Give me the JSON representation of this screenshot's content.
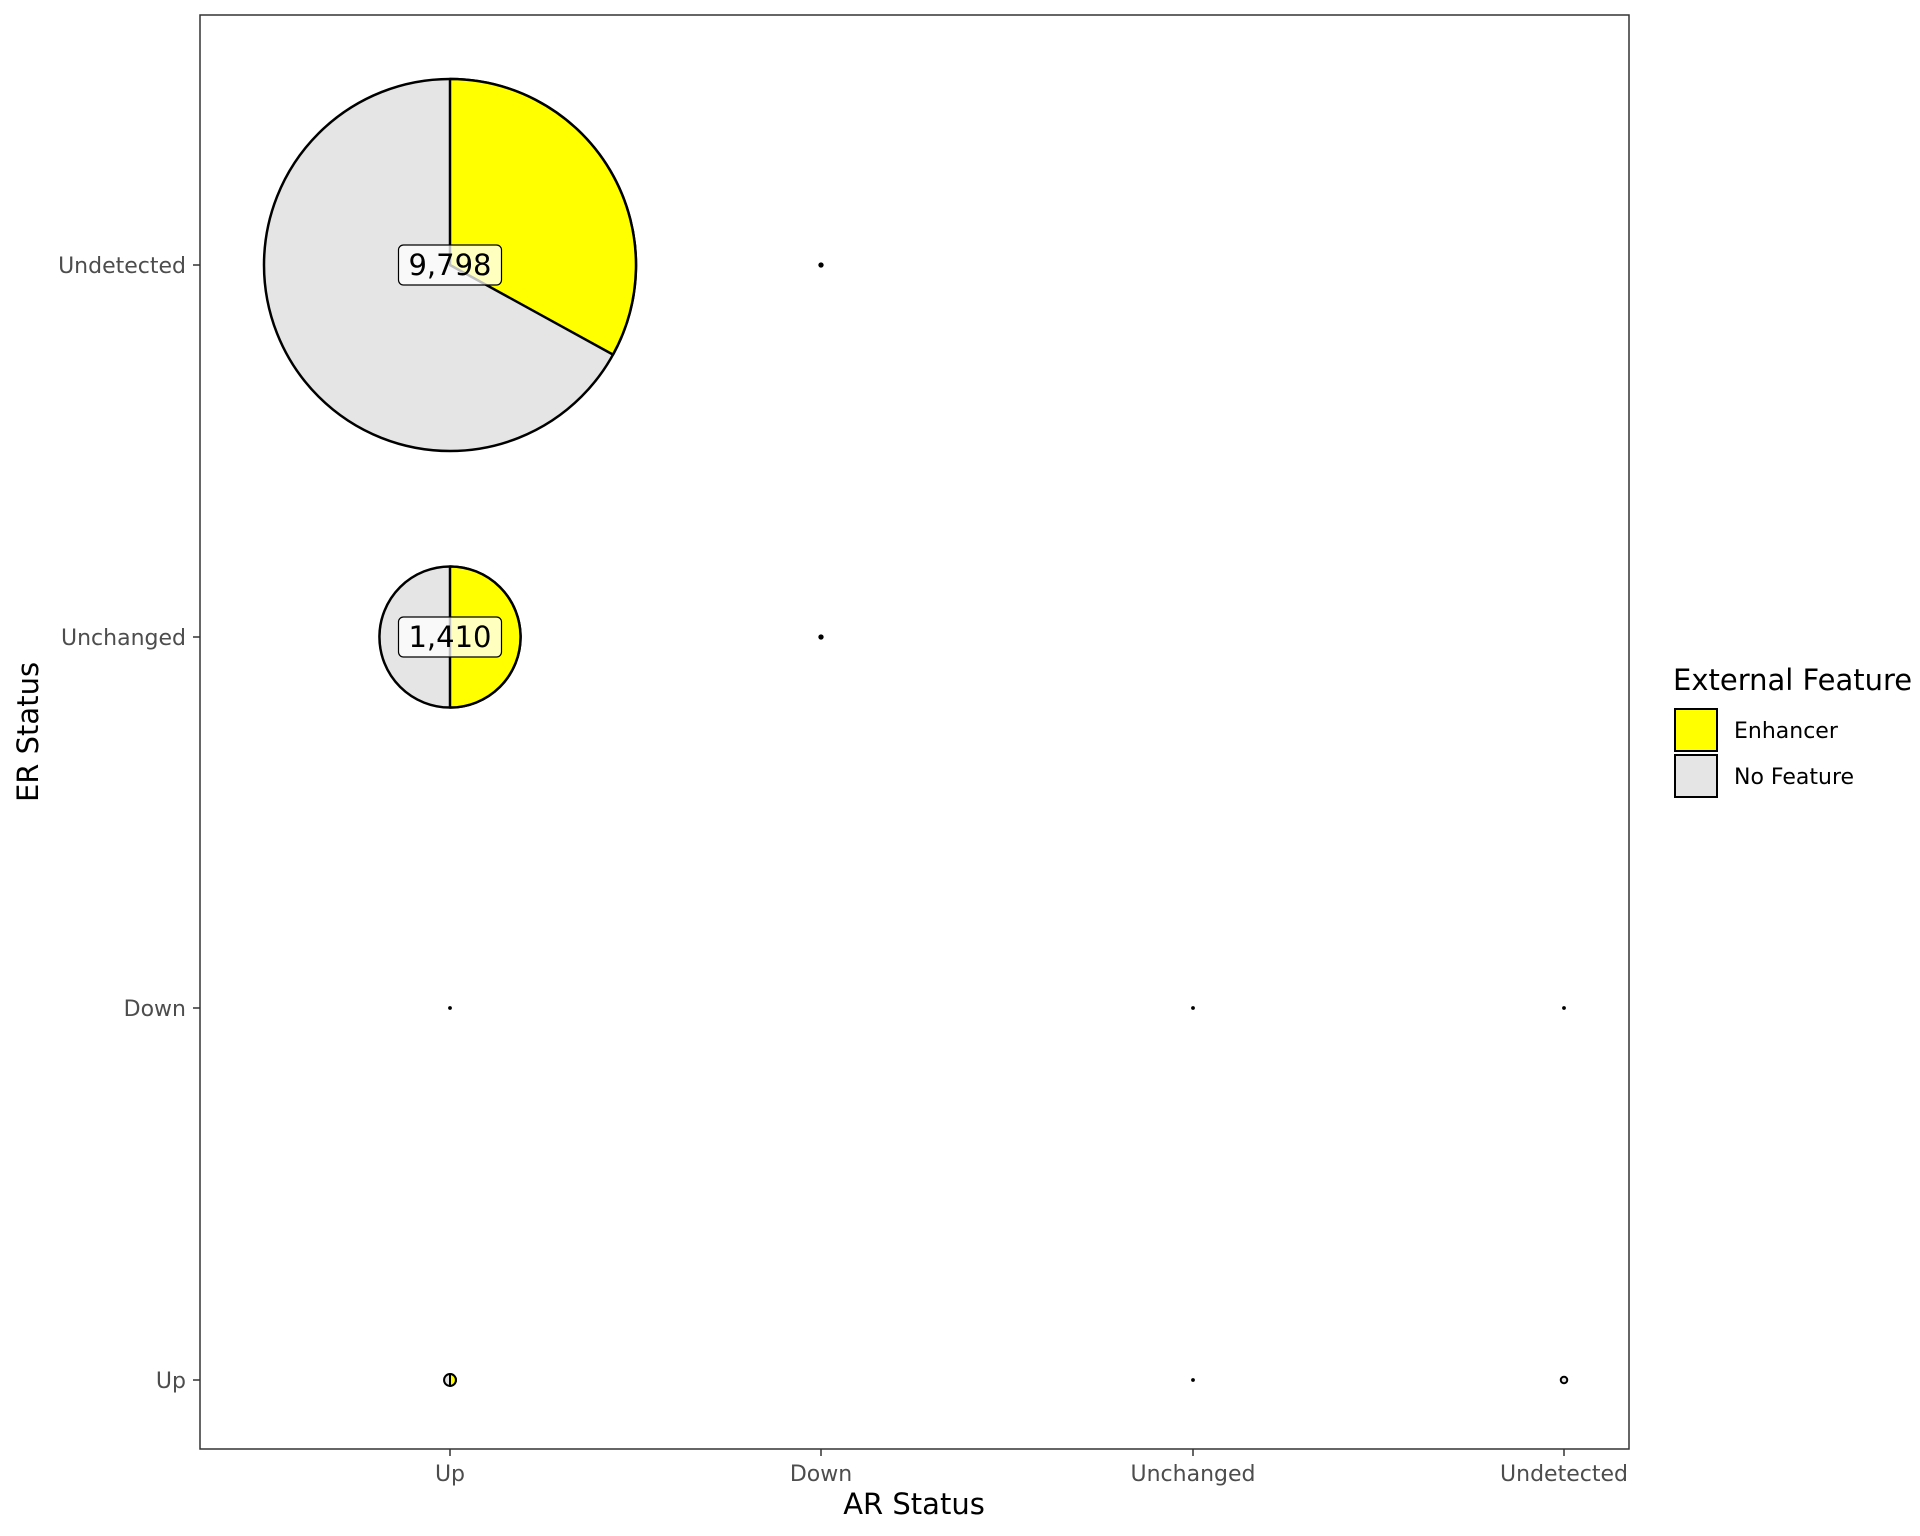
{
  "chart_data": {
    "type": "scatter",
    "subtype": "pie-scatter",
    "xlabel": "AR Status",
    "ylabel": "ER Status",
    "x_categories": [
      "Up",
      "Down",
      "Unchanged",
      "Undetected"
    ],
    "y_categories": [
      "Up",
      "Down",
      "Unchanged",
      "Undetected"
    ],
    "legend": {
      "title": "External Feature",
      "placement": "right",
      "entries": [
        {
          "name": "Enhancer",
          "color": "#ffff00"
        },
        {
          "name": "No Feature",
          "color": "#e5e5e5"
        }
      ]
    },
    "grid": false,
    "points": [
      {
        "x": "Up",
        "y": "Undetected",
        "total": 9798,
        "label": "9,798",
        "enhancer_fraction": 0.33
      },
      {
        "x": "Up",
        "y": "Unchanged",
        "total": 1410,
        "label": "1,410",
        "enhancer_fraction": 0.5
      },
      {
        "x": "Up",
        "y": "Up",
        "total": 10,
        "label": "",
        "enhancer_fraction": 0.5
      },
      {
        "x": "Up",
        "y": "Down",
        "total": 1,
        "label": "",
        "enhancer_fraction": 0
      },
      {
        "x": "Down",
        "y": "Undetected",
        "total": 2,
        "label": "",
        "enhancer_fraction": 0
      },
      {
        "x": "Down",
        "y": "Unchanged",
        "total": 2,
        "label": "",
        "enhancer_fraction": 0
      },
      {
        "x": "Unchanged",
        "y": "Down",
        "total": 1,
        "label": "",
        "enhancer_fraction": 0
      },
      {
        "x": "Unchanged",
        "y": "Up",
        "total": 1,
        "label": "",
        "enhancer_fraction": 0
      },
      {
        "x": "Undetected",
        "y": "Down",
        "total": 1,
        "label": "",
        "enhancer_fraction": 0
      },
      {
        "x": "Undetected",
        "y": "Up",
        "total": 3,
        "label": "",
        "enhancer_fraction": 0
      }
    ]
  }
}
